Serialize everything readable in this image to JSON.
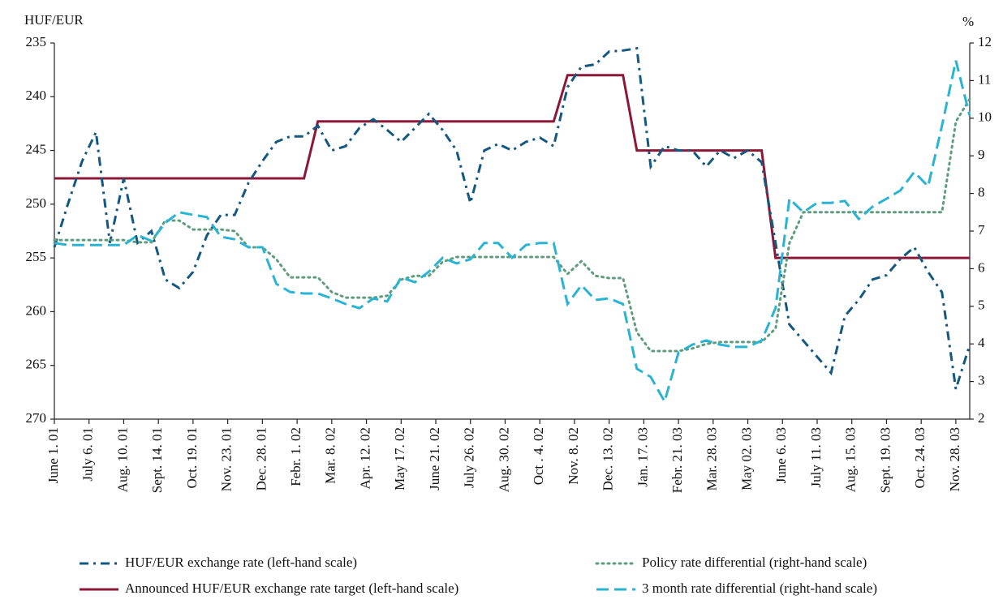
{
  "chart_data": {
    "type": "line",
    "y_label": "HUF/EUR",
    "y2_label": "%",
    "x": [
      "2001-06-01",
      "2001-06-15",
      "2001-06-29",
      "2001-07-13",
      "2001-07-27",
      "2001-08-10",
      "2001-08-24",
      "2001-09-07",
      "2001-09-21",
      "2001-10-05",
      "2001-10-19",
      "2001-11-02",
      "2001-11-16",
      "2001-11-30",
      "2001-12-14",
      "2001-12-28",
      "2002-01-11",
      "2002-01-25",
      "2002-02-08",
      "2002-02-22",
      "2002-03-08",
      "2002-03-22",
      "2002-04-05",
      "2002-04-19",
      "2002-05-03",
      "2002-05-17",
      "2002-05-31",
      "2002-06-14",
      "2002-06-28",
      "2002-07-12",
      "2002-07-26",
      "2002-08-09",
      "2002-08-23",
      "2002-09-06",
      "2002-09-20",
      "2002-10-04",
      "2002-10-18",
      "2002-11-01",
      "2002-11-15",
      "2002-11-29",
      "2002-12-13",
      "2002-12-27",
      "2003-01-10",
      "2003-01-24",
      "2003-02-07",
      "2003-02-21",
      "2003-03-07",
      "2003-03-21",
      "2003-04-04",
      "2003-04-18",
      "2003-05-02",
      "2003-05-16",
      "2003-05-30",
      "2003-06-13",
      "2003-06-27",
      "2003-07-11",
      "2003-07-25",
      "2003-08-08",
      "2003-08-22",
      "2003-09-05",
      "2003-09-19",
      "2003-10-03",
      "2003-10-17",
      "2003-10-31",
      "2003-11-14",
      "2003-11-28",
      "2003-12-12"
    ],
    "xlim": [
      "2001-06-01",
      "2003-12-12"
    ],
    "xticks": [
      {
        "value": "2001-06-01",
        "label": "June 1. 01"
      },
      {
        "value": "2001-07-06",
        "label": "July 6. 01"
      },
      {
        "value": "2001-08-10",
        "label": "Aug. 10. 01"
      },
      {
        "value": "2001-09-14",
        "label": "Sept. 14. 01"
      },
      {
        "value": "2001-10-19",
        "label": "Oct. 19. 01"
      },
      {
        "value": "2001-11-23",
        "label": "Nov. 23. 01"
      },
      {
        "value": "2001-12-28",
        "label": "Dec. 28. 01"
      },
      {
        "value": "2002-02-01",
        "label": "Febr. 1. 02"
      },
      {
        "value": "2002-03-08",
        "label": "Mar. 8. 02"
      },
      {
        "value": "2002-04-12",
        "label": "Apr. 12. 02"
      },
      {
        "value": "2002-05-17",
        "label": "May 17. 02"
      },
      {
        "value": "2002-06-21",
        "label": "June 21. 02"
      },
      {
        "value": "2002-07-26",
        "label": "July 26. 02"
      },
      {
        "value": "2002-08-30",
        "label": "Aug. 30. 02"
      },
      {
        "value": "2002-10-04",
        "label": "Oct . 4. 02"
      },
      {
        "value": "2002-11-08",
        "label": "Nov. 8. 02"
      },
      {
        "value": "2002-12-13",
        "label": "Dec. 13. 02"
      },
      {
        "value": "2003-01-17",
        "label": "Jan. 17. 03"
      },
      {
        "value": "2003-02-21",
        "label": "Febr. 21. 03"
      },
      {
        "value": "2003-03-28",
        "label": "Mar. 28. 03"
      },
      {
        "value": "2003-05-02",
        "label": "May 02. 03"
      },
      {
        "value": "2003-06-06",
        "label": "June 6. 03"
      },
      {
        "value": "2003-07-11",
        "label": "July 11. 03"
      },
      {
        "value": "2003-08-15",
        "label": "Aug. 15. 03"
      },
      {
        "value": "2003-09-19",
        "label": "Sept. 19. 03"
      },
      {
        "value": "2003-10-24",
        "label": "Oct. 24. 03"
      },
      {
        "value": "2003-11-28",
        "label": "Nov. 28. 03"
      }
    ],
    "ylim": [
      270,
      235
    ],
    "yticks": [
      235,
      240,
      245,
      250,
      255,
      260,
      265,
      270
    ],
    "y2lim": [
      2,
      12
    ],
    "y2ticks": [
      2,
      3,
      4,
      5,
      6,
      7,
      8,
      9,
      10,
      11,
      12
    ],
    "series": [
      {
        "name": "HUF/EUR exchange rate (left-hand scale)",
        "color": "#14587f",
        "style": "dashdot",
        "values": [
          254.0,
          249.9,
          246.0,
          243.3,
          253.6,
          247.6,
          253.6,
          252.5,
          257.0,
          257.8,
          256.3,
          252.9,
          251.0,
          251.0,
          248.0,
          246.0,
          244.2,
          243.7,
          243.7,
          242.7,
          245.0,
          244.6,
          242.9,
          242.1,
          243.1,
          244.2,
          242.9,
          241.6,
          243.1,
          245.0,
          249.9,
          245.0,
          244.4,
          245.0,
          244.2,
          243.8,
          244.6,
          239.1,
          237.2,
          237.0,
          235.8,
          235.7,
          235.5,
          246.5,
          244.6,
          245.0,
          245.0,
          246.5,
          245.0,
          245.7,
          245.0,
          246.1,
          253.6,
          261.2,
          262.7,
          264.2,
          265.7,
          260.4,
          258.9,
          257.0,
          256.6,
          255.1,
          254.0,
          256.3,
          258.2,
          267.2,
          263.1
        ]
      },
      {
        "name": "Policy rate differential (right-hand scale)",
        "color": "#5f9c7d",
        "style": "dotted",
        "axis": "y2",
        "values": [
          6.76,
          6.76,
          6.76,
          6.76,
          6.76,
          6.76,
          6.7,
          6.7,
          7.28,
          7.28,
          7.04,
          7.04,
          7.04,
          7.0,
          6.57,
          6.57,
          6.25,
          5.77,
          5.77,
          5.77,
          5.38,
          5.23,
          5.23,
          5.23,
          5.28,
          5.71,
          5.81,
          5.81,
          6.18,
          6.31,
          6.31,
          6.31,
          6.31,
          6.31,
          6.31,
          6.31,
          6.31,
          5.86,
          6.2,
          5.81,
          5.75,
          5.75,
          4.31,
          3.81,
          3.81,
          3.81,
          3.88,
          4.0,
          4.05,
          4.05,
          4.05,
          4.05,
          4.41,
          6.68,
          7.5,
          7.5,
          7.5,
          7.5,
          7.5,
          7.5,
          7.5,
          7.5,
          7.5,
          7.5,
          7.5,
          9.91,
          10.51
        ]
      },
      {
        "name": "Announced HUF/EUR exchange rate target (left-hand scale)",
        "color": "#8c1838",
        "style": "solid",
        "values": [
          247.6,
          247.6,
          247.6,
          247.6,
          247.6,
          247.6,
          247.6,
          247.6,
          247.6,
          247.6,
          247.6,
          247.6,
          247.6,
          247.6,
          247.6,
          247.6,
          247.6,
          247.6,
          247.6,
          242.3,
          242.3,
          242.3,
          242.3,
          242.3,
          242.3,
          242.3,
          242.3,
          242.3,
          242.3,
          242.3,
          242.3,
          242.3,
          242.3,
          242.3,
          242.3,
          242.3,
          242.3,
          238.0,
          238.0,
          238.0,
          238.0,
          238.0,
          245.0,
          245.0,
          245.0,
          245.0,
          245.0,
          245.0,
          245.0,
          245.0,
          245.0,
          245.0,
          255.0,
          255.0,
          255.0,
          255.0,
          255.0,
          255.0,
          255.0,
          255.0,
          255.0,
          255.0,
          255.0,
          255.0,
          255.0,
          255.0,
          255.0
        ]
      },
      {
        "name": "3 month rate differential (right-hand scale)",
        "color": "#2ab3d3",
        "style": "dashed",
        "axis": "y2",
        "values": [
          6.68,
          6.63,
          6.63,
          6.63,
          6.63,
          6.63,
          6.89,
          6.74,
          7.22,
          7.5,
          7.43,
          7.37,
          6.85,
          6.78,
          6.57,
          6.57,
          5.6,
          5.38,
          5.34,
          5.34,
          5.21,
          5.06,
          4.95,
          5.21,
          5.13,
          5.77,
          5.64,
          5.92,
          6.29,
          6.14,
          6.25,
          6.68,
          6.68,
          6.29,
          6.63,
          6.68,
          6.68,
          5.06,
          5.56,
          5.17,
          5.21,
          5.06,
          3.34,
          3.12,
          2.47,
          3.77,
          3.98,
          4.09,
          3.98,
          3.92,
          3.92,
          4.09,
          4.95,
          7.86,
          7.5,
          7.75,
          7.75,
          7.8,
          7.32,
          7.65,
          7.86,
          8.08,
          8.57,
          8.19,
          9.8,
          11.53,
          10.06
        ]
      }
    ]
  }
}
